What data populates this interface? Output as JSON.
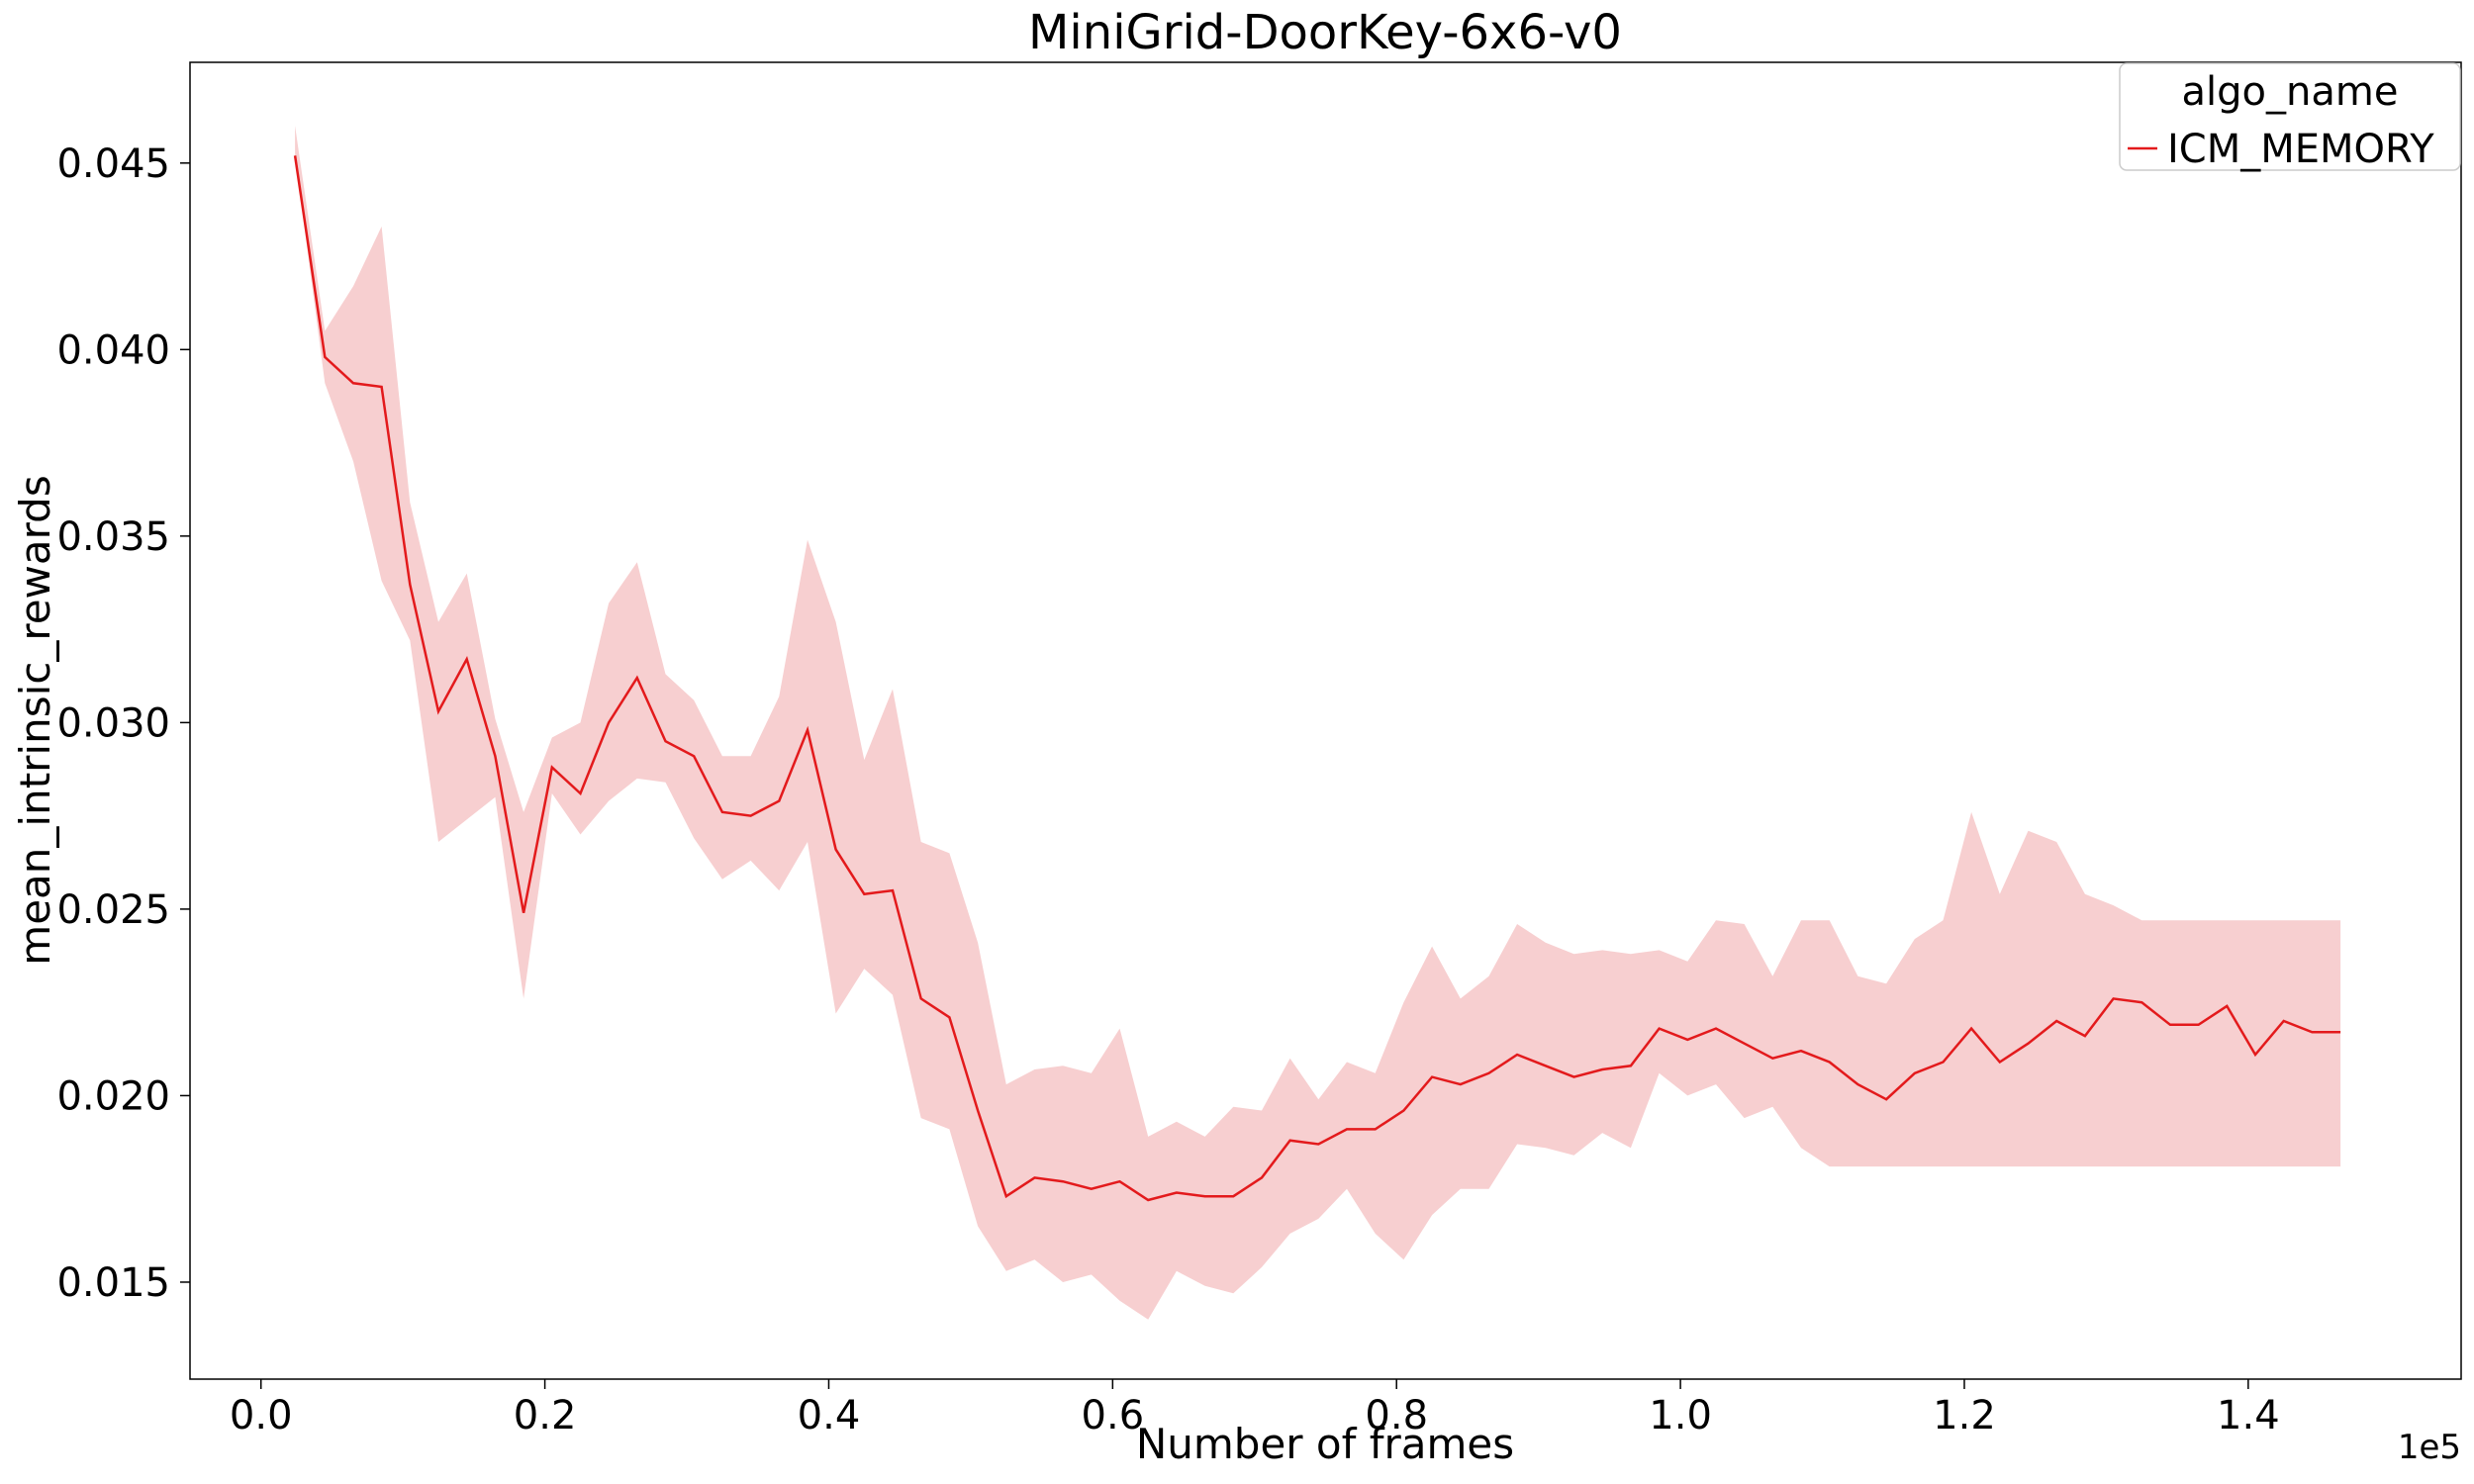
{
  "colors": {
    "line": "#e31a1c",
    "band": "#f7cfd0",
    "axis": "#000000"
  },
  "chart_data": {
    "type": "line",
    "title": "MiniGrid-DoorKey-6x6-v0",
    "xlabel": "Number of frames",
    "ylabel": "mean_intrinsic_rewards",
    "x_offset_label": "1e5",
    "xlim": [
      -0.05,
      1.55
    ],
    "ylim": [
      0.0124,
      0.0477
    ],
    "xticks": [
      0.0,
      0.2,
      0.4,
      0.6,
      0.8,
      1.0,
      1.2,
      1.4
    ],
    "xtick_labels": [
      "0.0",
      "0.2",
      "0.4",
      "0.6",
      "0.8",
      "1.0",
      "1.2",
      "1.4"
    ],
    "yticks": [
      0.015,
      0.02,
      0.025,
      0.03,
      0.035,
      0.04,
      0.045
    ],
    "ytick_labels": [
      "0.015",
      "0.020",
      "0.025",
      "0.030",
      "0.035",
      "0.040",
      "0.045"
    ],
    "grid": false,
    "legend": {
      "title": "algo_name",
      "placement": "top-right"
    },
    "series": [
      {
        "name": "ICM_MEMORY",
        "x": [
          0.024,
          0.045,
          0.065,
          0.085,
          0.105,
          0.125,
          0.145,
          0.165,
          0.185,
          0.205,
          0.225,
          0.245,
          0.265,
          0.285,
          0.305,
          0.325,
          0.345,
          0.365,
          0.385,
          0.405,
          0.425,
          0.445,
          0.465,
          0.485,
          0.505,
          0.525,
          0.545,
          0.565,
          0.585,
          0.605,
          0.625,
          0.645,
          0.665,
          0.685,
          0.705,
          0.725,
          0.745,
          0.765,
          0.785,
          0.805,
          0.825,
          0.845,
          0.865,
          0.885,
          0.905,
          0.925,
          0.945,
          0.965,
          0.985,
          1.005,
          1.025,
          1.045,
          1.065,
          1.085,
          1.105,
          1.125,
          1.145,
          1.165,
          1.185,
          1.205,
          1.225,
          1.245,
          1.265,
          1.285,
          1.305,
          1.325,
          1.345,
          1.365,
          1.385,
          1.405,
          1.425,
          1.445,
          1.465
        ],
        "y": [
          0.0452,
          0.0398,
          0.0391,
          0.039,
          0.0337,
          0.0303,
          0.0317,
          0.0291,
          0.0249,
          0.0288,
          0.0281,
          0.03,
          0.0312,
          0.0295,
          0.0291,
          0.0276,
          0.0275,
          0.0279,
          0.0298,
          0.0266,
          0.0254,
          0.0255,
          0.0226,
          0.0221,
          0.0196,
          0.0173,
          0.0178,
          0.0177,
          0.0175,
          0.0177,
          0.0172,
          0.0174,
          0.0173,
          0.0173,
          0.0178,
          0.0188,
          0.0187,
          0.0191,
          0.0191,
          0.0196,
          0.0205,
          0.0203,
          0.0206,
          0.0211,
          0.0208,
          0.0205,
          0.0207,
          0.0208,
          0.0218,
          0.0215,
          0.0218,
          0.0214,
          0.021,
          0.0212,
          0.0209,
          0.0203,
          0.0199,
          0.0206,
          0.0209,
          0.0218,
          0.0209,
          0.0214,
          0.022,
          0.0216,
          0.0226,
          0.0225,
          0.0219,
          0.0219,
          0.0224,
          0.0211,
          0.022,
          0.0217,
          0.0217
        ],
        "y_lower": [
          0.0452,
          0.0391,
          0.037,
          0.0338,
          0.0322,
          0.0268,
          0.0274,
          0.028,
          0.0226,
          0.0281,
          0.027,
          0.0279,
          0.0285,
          0.0284,
          0.0269,
          0.0258,
          0.0263,
          0.0255,
          0.0268,
          0.0222,
          0.0234,
          0.0227,
          0.0194,
          0.0191,
          0.0165,
          0.0153,
          0.0156,
          0.015,
          0.0152,
          0.0145,
          0.014,
          0.0153,
          0.0149,
          0.0147,
          0.0154,
          0.0163,
          0.0167,
          0.0175,
          0.0163,
          0.0156,
          0.0168,
          0.0175,
          0.0175,
          0.0187,
          0.0186,
          0.0184,
          0.019,
          0.0186,
          0.0206,
          0.02,
          0.0203,
          0.0194,
          0.0197,
          0.0186,
          0.0181,
          0.0181,
          0.0181,
          0.0181,
          0.0181,
          0.0181,
          0.0181,
          0.0181,
          0.0181,
          0.0181,
          0.0181,
          0.0181,
          0.0181,
          0.0181,
          0.0181,
          0.0181,
          0.0181,
          0.0181,
          0.0181
        ],
        "y_upper": [
          0.046,
          0.0405,
          0.0417,
          0.0433,
          0.0359,
          0.0327,
          0.034,
          0.0301,
          0.0276,
          0.0296,
          0.03,
          0.0332,
          0.0343,
          0.0313,
          0.0306,
          0.0291,
          0.0291,
          0.0307,
          0.0349,
          0.0327,
          0.029,
          0.0309,
          0.0268,
          0.0265,
          0.0241,
          0.0203,
          0.0207,
          0.0208,
          0.0206,
          0.0218,
          0.0189,
          0.0193,
          0.0189,
          0.0197,
          0.0196,
          0.021,
          0.0199,
          0.0209,
          0.0206,
          0.0225,
          0.024,
          0.0226,
          0.0232,
          0.0246,
          0.0241,
          0.0238,
          0.0239,
          0.0238,
          0.0239,
          0.0236,
          0.0247,
          0.0246,
          0.0232,
          0.0247,
          0.0247,
          0.0232,
          0.023,
          0.0242,
          0.0247,
          0.0276,
          0.0254,
          0.0271,
          0.0268,
          0.0254,
          0.0251,
          0.0247,
          0.0247,
          0.0247,
          0.0247,
          0.0247,
          0.0247,
          0.0247,
          0.0247
        ]
      }
    ]
  }
}
